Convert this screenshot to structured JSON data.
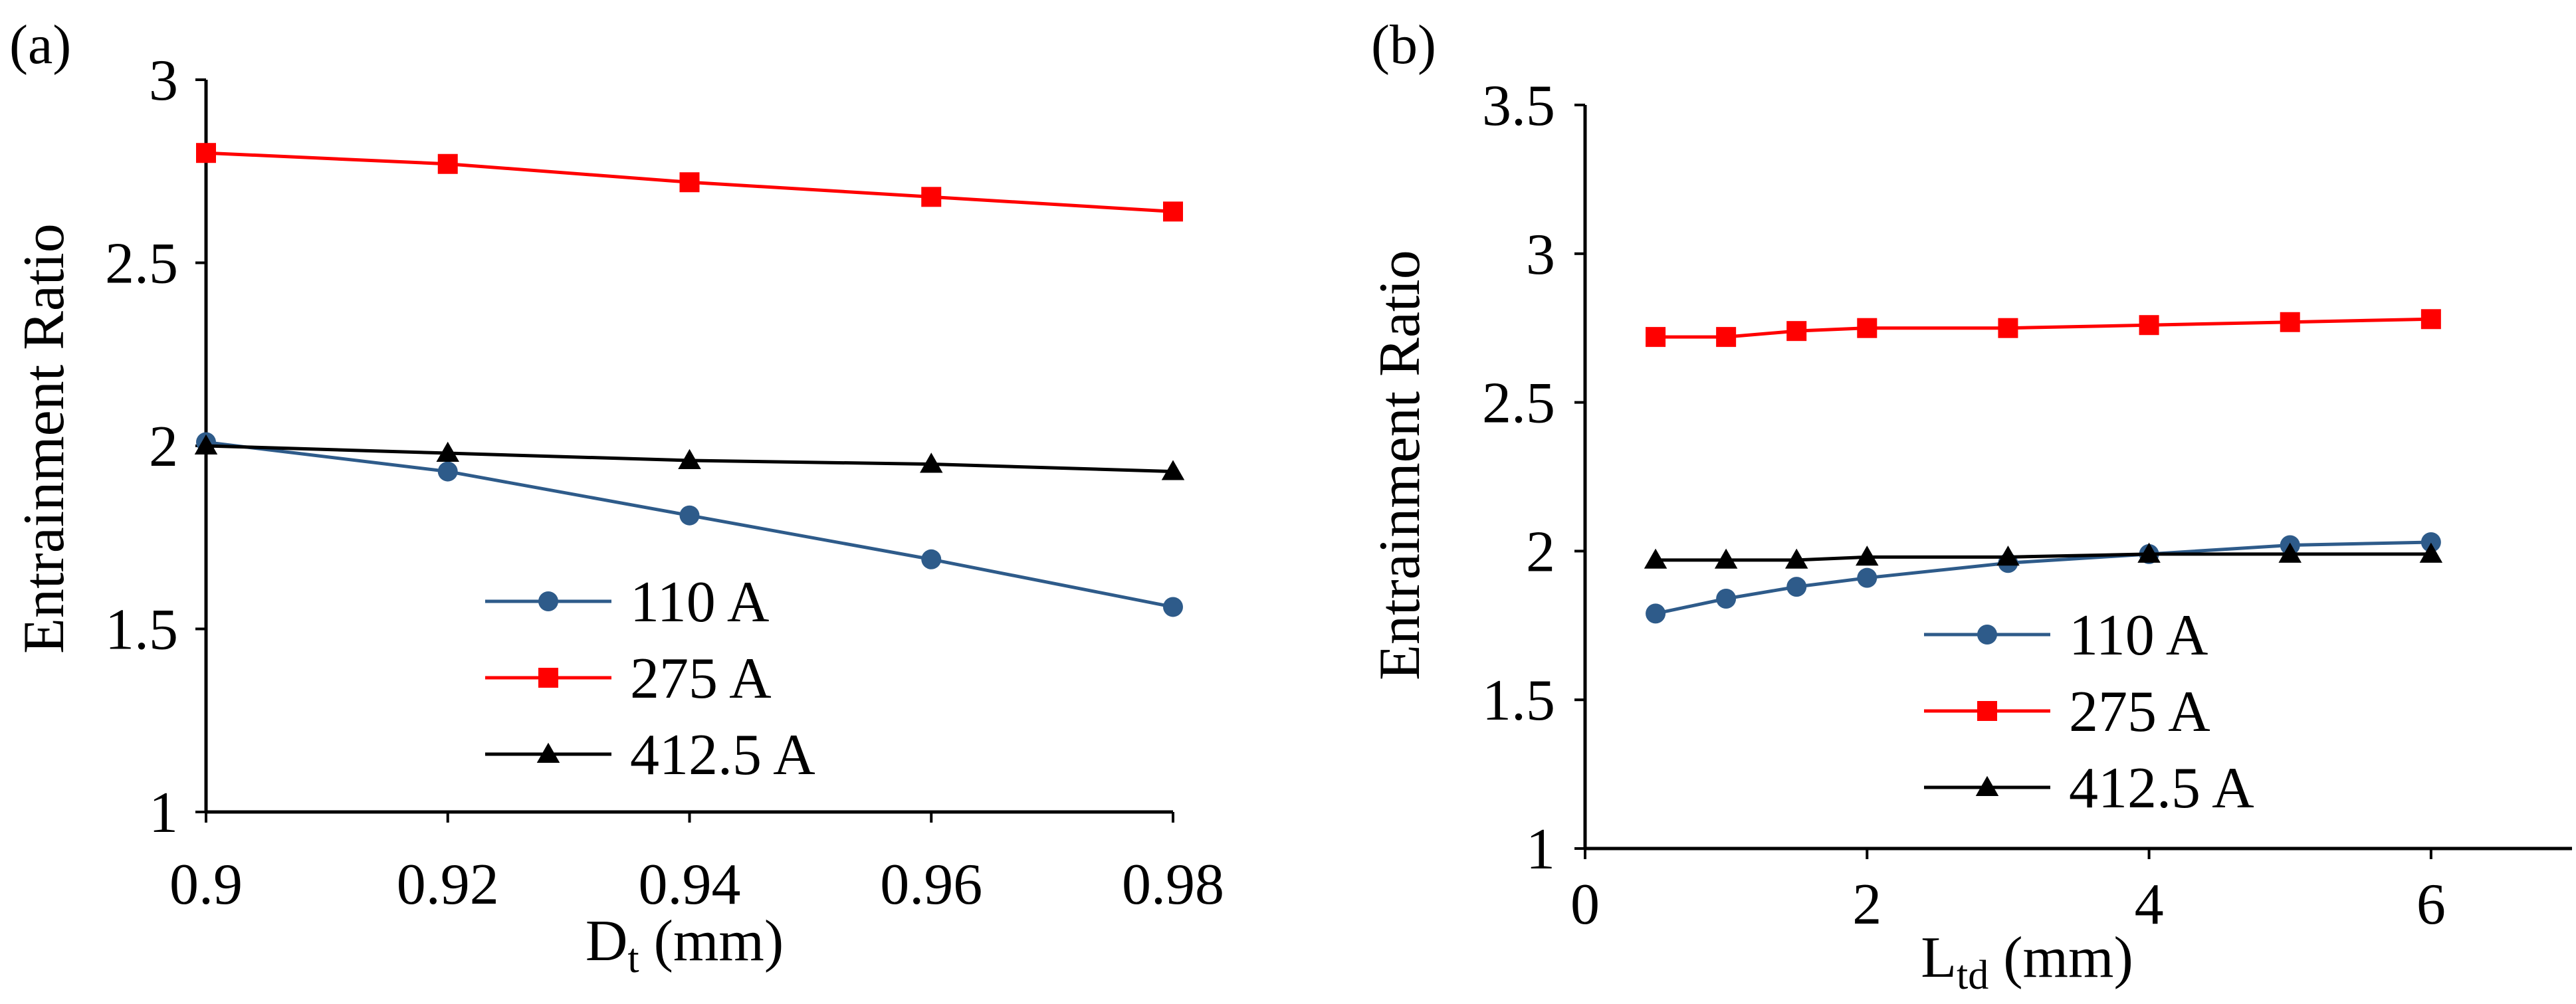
{
  "chart_data": [
    {
      "type": "line",
      "panel_label": "(a)",
      "xlabel_main": "D",
      "xlabel_sub": "t",
      "xlabel_unit": " (mm)",
      "ylabel": "Entrainment Ratio",
      "xlim": [
        0.9,
        0.98
      ],
      "ylim": [
        1,
        3
      ],
      "x_ticks": [
        0.9,
        0.92,
        0.94,
        0.96,
        0.98
      ],
      "x_tick_labels": [
        "0.9",
        "0.92",
        "0.94",
        "0.96",
        "0.98"
      ],
      "y_ticks": [
        1,
        1.5,
        2,
        2.5,
        3
      ],
      "y_tick_labels": [
        "1",
        "1.5",
        "2",
        "2.5",
        "3"
      ],
      "legend_placement": "lower-center",
      "series": [
        {
          "name": "110 A",
          "marker": "circle",
          "color": "#2E5B8A",
          "x": [
            0.9,
            0.92,
            0.94,
            0.96,
            0.98
          ],
          "y": [
            2.01,
            1.93,
            1.81,
            1.69,
            1.56
          ]
        },
        {
          "name": "275 A",
          "marker": "square",
          "color": "#FF0000",
          "x": [
            0.9,
            0.92,
            0.94,
            0.96,
            0.98
          ],
          "y": [
            2.8,
            2.77,
            2.72,
            2.68,
            2.64
          ]
        },
        {
          "name": "412.5 A",
          "marker": "triangle",
          "color": "#000000",
          "x": [
            0.9,
            0.92,
            0.94,
            0.96,
            0.98
          ],
          "y": [
            2.0,
            1.98,
            1.96,
            1.95,
            1.93
          ]
        }
      ]
    },
    {
      "type": "line",
      "panel_label": "(b)",
      "xlabel_main": "L",
      "xlabel_sub": "td",
      "xlabel_unit": " (mm)",
      "ylabel": "Entrainment Ratio",
      "xlim": [
        0,
        7
      ],
      "ylim": [
        1,
        3.5
      ],
      "x_ticks": [
        0,
        2,
        4,
        6
      ],
      "x_tick_labels": [
        "0",
        "2",
        "4",
        "6"
      ],
      "y_ticks": [
        1,
        1.5,
        2,
        2.5,
        3,
        3.5
      ],
      "y_tick_labels": [
        "1",
        "1.5",
        "2",
        "2.5",
        "3",
        "3.5"
      ],
      "legend_placement": "lower-center",
      "series": [
        {
          "name": "110 A",
          "marker": "circle",
          "color": "#2E5B8A",
          "x": [
            0.5,
            1,
            1.5,
            2,
            3,
            4,
            5,
            6
          ],
          "y": [
            1.79,
            1.84,
            1.88,
            1.91,
            1.96,
            1.99,
            2.02,
            2.03
          ]
        },
        {
          "name": "275 A",
          "marker": "square",
          "color": "#FF0000",
          "x": [
            0.5,
            1,
            1.5,
            2,
            3,
            4,
            5,
            6
          ],
          "y": [
            2.72,
            2.72,
            2.74,
            2.75,
            2.75,
            2.76,
            2.77,
            2.78
          ]
        },
        {
          "name": "412.5 A",
          "marker": "triangle",
          "color": "#000000",
          "x": [
            0.5,
            1,
            1.5,
            2,
            3,
            4,
            5,
            6
          ],
          "y": [
            1.97,
            1.97,
            1.97,
            1.98,
            1.98,
            1.99,
            1.99,
            1.99
          ]
        }
      ]
    }
  ]
}
